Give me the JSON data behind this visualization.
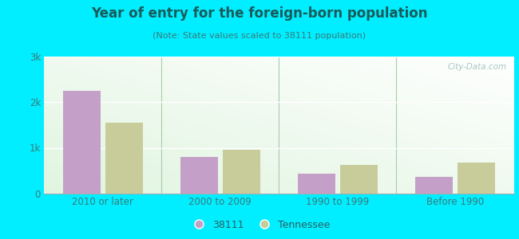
{
  "title": "Year of entry for the foreign-born population",
  "subtitle": "(Note: State values scaled to 38111 population)",
  "categories": [
    "2010 or later",
    "2000 to 2009",
    "1990 to 1999",
    "Before 1990"
  ],
  "values_38111": [
    2250,
    800,
    430,
    360
  ],
  "values_tennessee": [
    1550,
    950,
    620,
    680
  ],
  "color_38111": "#c4a0c8",
  "color_tennessee": "#c8cc9a",
  "background_outer": "#00eeff",
  "background_inner_tl": "#e8f5e0",
  "background_inner_br": "#f8fff8",
  "ylim": [
    0,
    3000
  ],
  "yticks": [
    0,
    1000,
    2000,
    3000
  ],
  "ytick_labels": [
    "0",
    "1k",
    "2k",
    "3k"
  ],
  "legend_38111": "38111",
  "legend_tennessee": "Tennessee",
  "bar_width": 0.32,
  "watermark": "City-Data.com",
  "title_color": "#1a5a5a",
  "subtitle_color": "#3a7a7a",
  "tick_color": "#3a7a7a",
  "separator_color": "#aaccaa"
}
